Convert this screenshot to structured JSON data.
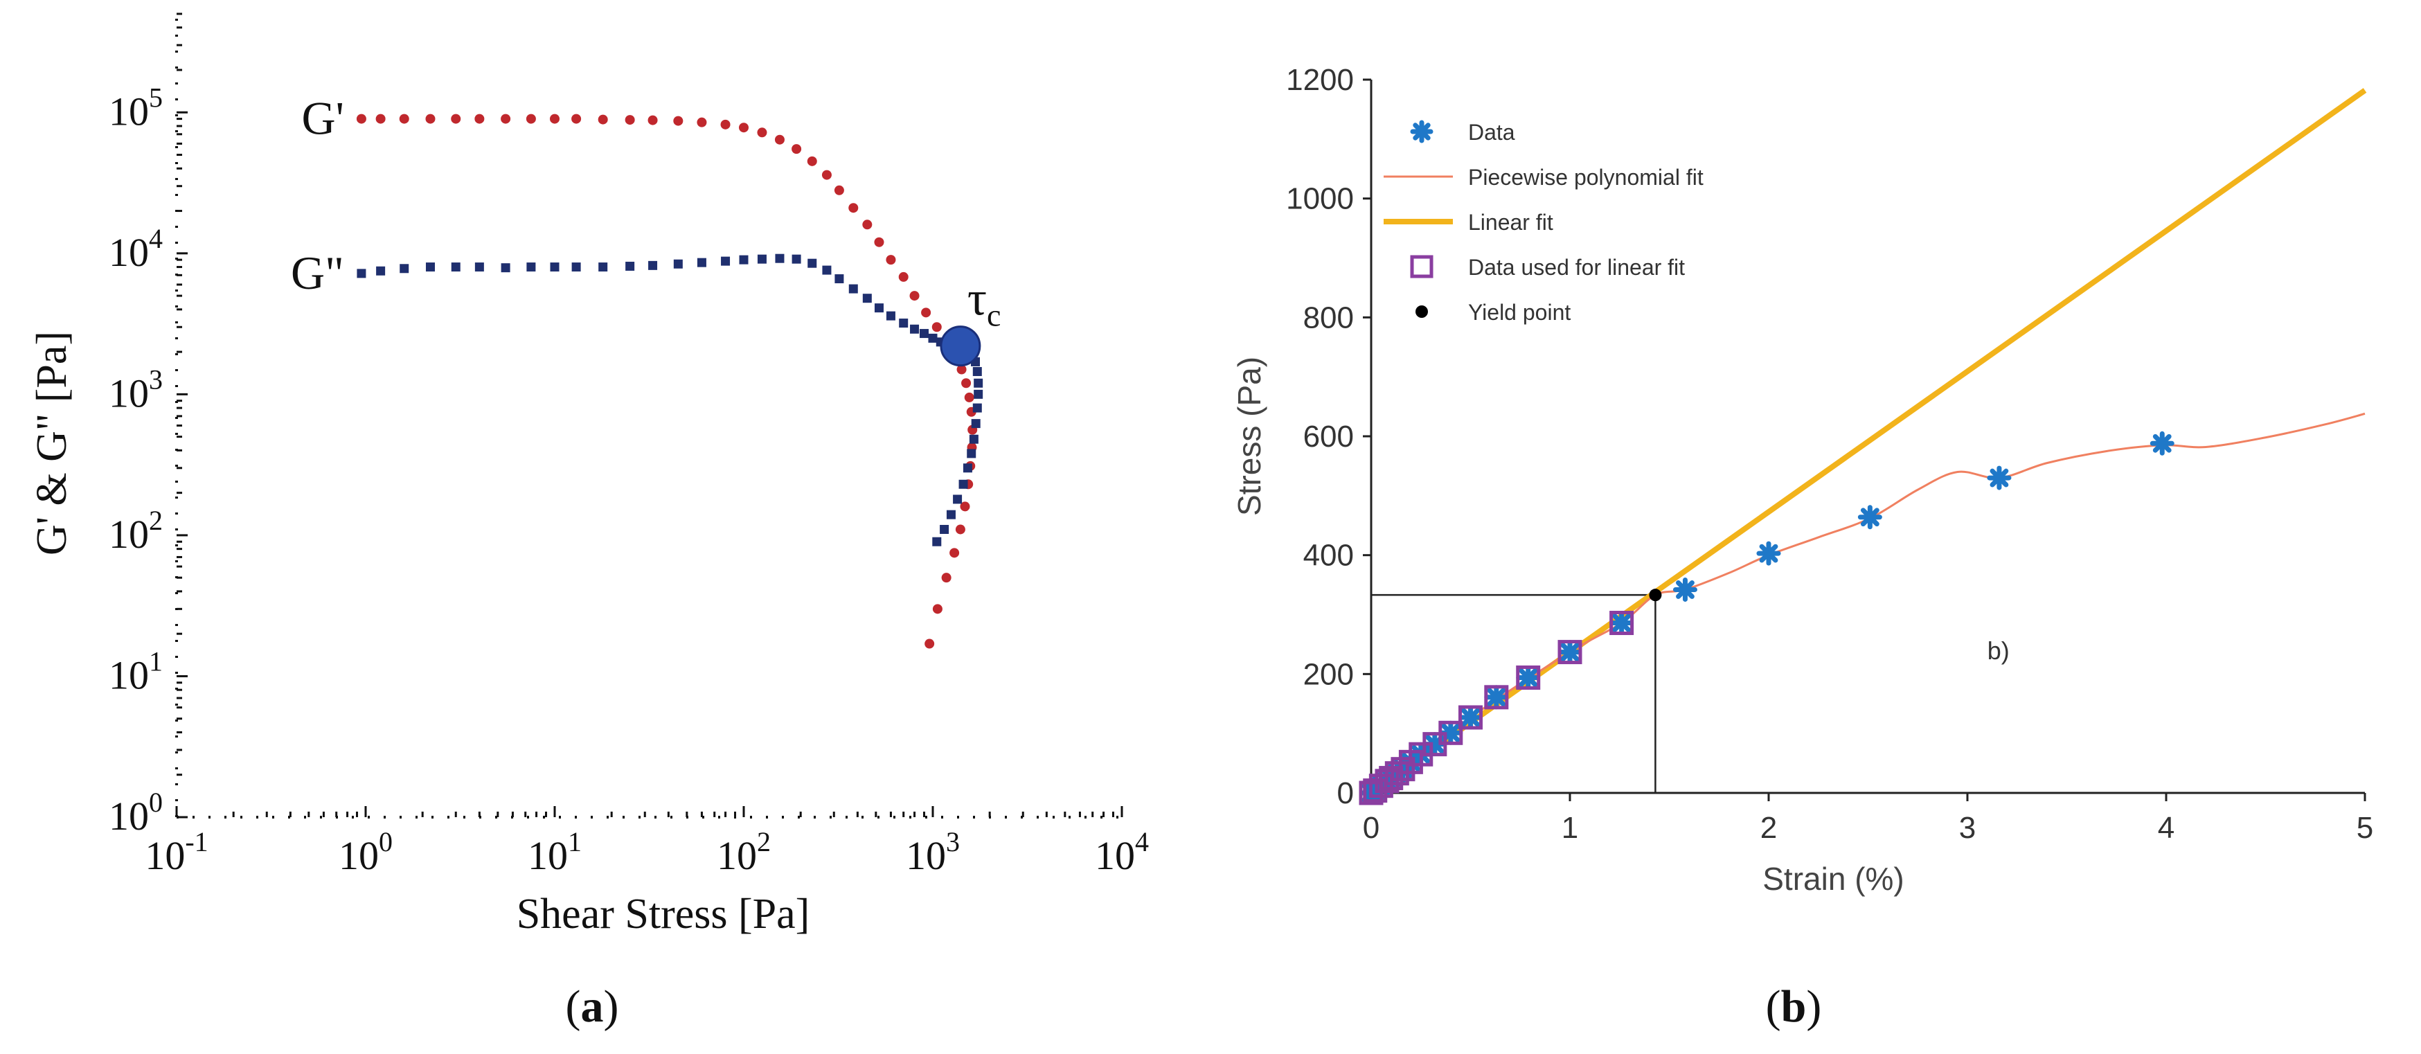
{
  "chart_data": [
    {
      "id": "a",
      "type": "scatter",
      "caption_open": "(",
      "caption_letter": "a",
      "caption_close": ")",
      "xlabel": "Shear Stress [Pa]",
      "ylabel": "G' & G\" [Pa]",
      "xscale": "log",
      "yscale": "log",
      "xlim": [
        0.1,
        10000
      ],
      "ylim": [
        1,
        500000
      ],
      "x_ticks": [
        {
          "base": "10",
          "exp": "-1",
          "value": 0.1
        },
        {
          "base": "10",
          "exp": "0",
          "value": 1
        },
        {
          "base": "10",
          "exp": "1",
          "value": 10
        },
        {
          "base": "10",
          "exp": "2",
          "value": 100
        },
        {
          "base": "10",
          "exp": "3",
          "value": 1000
        },
        {
          "base": "10",
          "exp": "4",
          "value": 10000
        }
      ],
      "y_ticks": [
        {
          "base": "10",
          "exp": "0",
          "value": 1
        },
        {
          "base": "10",
          "exp": "1",
          "value": 10
        },
        {
          "base": "10",
          "exp": "2",
          "value": 100
        },
        {
          "base": "10",
          "exp": "3",
          "value": 1000
        },
        {
          "base": "10",
          "exp": "4",
          "value": 10000
        },
        {
          "base": "10",
          "exp": "5",
          "value": 100000
        }
      ],
      "series": [
        {
          "name": "G'",
          "label": "G'",
          "color": "#c0282d",
          "marker": "circle",
          "x": [
            0.95,
            1.2,
            1.6,
            2.2,
            3,
            4,
            5.5,
            7.5,
            10,
            13,
            18,
            25,
            33,
            45,
            60,
            80,
            100,
            125,
            155,
            190,
            230,
            275,
            320,
            380,
            450,
            520,
            600,
            700,
            800,
            920,
            1050,
            1200,
            1320,
            1420,
            1500,
            1560,
            1600,
            1620,
            1610,
            1580,
            1540,
            1480,
            1400,
            1300,
            1180,
            1060,
            960
          ],
          "y": [
            90000,
            90000,
            90000,
            90000,
            90000,
            90000,
            90000,
            90000,
            90000,
            90000,
            89000,
            88500,
            88000,
            87000,
            85000,
            82000,
            78000,
            72000,
            64000,
            55000,
            45000,
            36000,
            28000,
            21000,
            16000,
            12000,
            9000,
            6800,
            5000,
            3800,
            3000,
            2400,
            1900,
            1500,
            1200,
            950,
            750,
            560,
            420,
            310,
            230,
            160,
            110,
            75,
            50,
            30,
            17
          ]
        },
        {
          "name": "G\"",
          "label": "G\"",
          "color": "#1f2f6e",
          "marker": "square",
          "x": [
            0.95,
            1.2,
            1.6,
            2.2,
            3,
            4,
            5.5,
            7.5,
            10,
            13,
            18,
            25,
            33,
            45,
            60,
            80,
            100,
            125,
            155,
            190,
            230,
            275,
            320,
            380,
            450,
            520,
            600,
            700,
            800,
            900,
            1000,
            1100,
            1200,
            1300,
            1400,
            1500,
            1600,
            1680,
            1720,
            1740,
            1740,
            1720,
            1690,
            1650,
            1600,
            1530,
            1450,
            1350,
            1250,
            1150,
            1050
          ],
          "y": [
            7200,
            7500,
            7800,
            8000,
            8000,
            8000,
            7900,
            8000,
            8000,
            8000,
            8000,
            8100,
            8200,
            8400,
            8600,
            8800,
            9000,
            9100,
            9200,
            9100,
            8500,
            7600,
            6600,
            5600,
            4800,
            4100,
            3600,
            3200,
            2900,
            2700,
            2500,
            2350,
            2250,
            2150,
            2050,
            2000,
            1900,
            1700,
            1450,
            1200,
            1000,
            800,
            620,
            480,
            380,
            300,
            230,
            180,
            140,
            110,
            90
          ]
        }
      ],
      "annotations": [
        {
          "text": "τ",
          "sub": "c",
          "x": 1400,
          "y": 2200,
          "marker": "circle",
          "color": "#2b52b0"
        }
      ]
    },
    {
      "id": "b",
      "type": "line",
      "caption_open": "(",
      "caption_letter": "b",
      "caption_close": ")",
      "inner_label": "b)",
      "xlabel": "Strain (%)",
      "ylabel": "Stress (Pa)",
      "xlim": [
        0,
        5
      ],
      "ylim": [
        0,
        1200
      ],
      "x_ticks": [
        "0",
        "1",
        "2",
        "3",
        "4",
        "5"
      ],
      "y_ticks": [
        "0",
        "200",
        "400",
        "600",
        "800",
        "1000",
        "1200"
      ],
      "series": [
        {
          "name": "Data",
          "type": "scatter",
          "color": "#1f78c8",
          "marker": "asterisk",
          "x": [
            0,
            0.02,
            0.05,
            0.08,
            0.1,
            0.13,
            0.16,
            0.2,
            0.25,
            0.32,
            0.4,
            0.5,
            0.63,
            0.79,
            1.0,
            1.26,
            1.58,
            2.0,
            2.51,
            3.16,
            3.98
          ],
          "y": [
            0,
            4,
            12,
            20,
            25,
            33,
            40,
            52,
            65,
            82,
            101,
            127,
            161,
            194,
            237,
            286,
            342,
            403,
            464,
            530,
            588
          ]
        },
        {
          "name": "Piecewise polynomial fit",
          "type": "line",
          "color": "#f08060",
          "x": [
            0,
            0.5,
            1.0,
            1.26,
            1.43,
            1.58,
            1.8,
            2.0,
            2.25,
            2.51,
            2.75,
            2.95,
            3.16,
            3.4,
            3.7,
            3.98,
            4.2,
            4.5,
            4.8,
            5.0
          ],
          "y": [
            0,
            127,
            237,
            286,
            333,
            342,
            370,
            400,
            430,
            462,
            510,
            540,
            530,
            555,
            575,
            585,
            582,
            598,
            620,
            638
          ]
        },
        {
          "name": "Linear fit",
          "type": "line",
          "color": "#f2b31b",
          "x": [
            0,
            5
          ],
          "y": [
            0,
            1182
          ]
        },
        {
          "name": "Data used for linear fit",
          "type": "scatter",
          "color": "#8a3ea0",
          "marker": "square-open",
          "x": [
            0,
            0.02,
            0.05,
            0.08,
            0.1,
            0.13,
            0.16,
            0.2,
            0.25,
            0.32,
            0.4,
            0.5,
            0.63,
            0.79,
            1.0,
            1.26
          ],
          "y": [
            0,
            4,
            12,
            20,
            25,
            33,
            40,
            52,
            65,
            82,
            101,
            127,
            161,
            194,
            237,
            286
          ]
        },
        {
          "name": "Yield point",
          "type": "scatter",
          "color": "#000000",
          "marker": "dot",
          "x": [
            1.43
          ],
          "y": [
            333
          ]
        }
      ],
      "legend": {
        "placement": "top-left",
        "entries": [
          "Data",
          "Piecewise polynomial fit",
          "Linear fit",
          "Data used for linear fit",
          "Yield point"
        ]
      },
      "yield_guides": {
        "x": 1.43,
        "y": 333
      }
    }
  ]
}
